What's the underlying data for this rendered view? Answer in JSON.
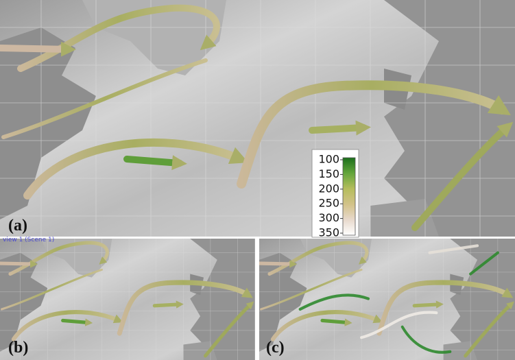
{
  "panels": [
    {
      "label": "(a)"
    },
    {
      "label": "(b)"
    },
    {
      "label": "(c)"
    }
  ],
  "view_label": "view 1 (Scene 1)",
  "colorbar": {
    "lim": [
      100,
      350
    ],
    "ticks": [
      100,
      150,
      200,
      250,
      300,
      350
    ]
  }
}
